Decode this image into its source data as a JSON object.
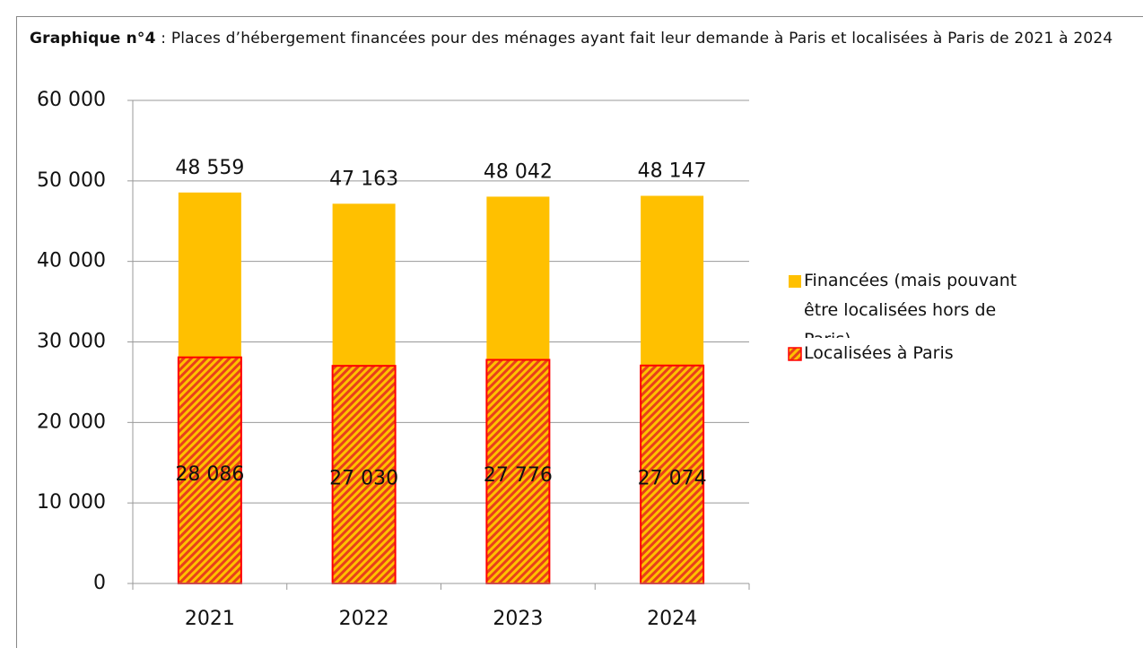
{
  "chart_data": {
    "type": "bar",
    "title_prefix": "Graphique n°4",
    "title": ": Places d’hébergement financées pour des ménages ayant fait leur demande à Paris et localisées à Paris de 2021 à 2024",
    "categories": [
      "2021",
      "2022",
      "2023",
      "2024"
    ],
    "series": [
      {
        "name": "Financées (mais pouvant être localisées hors de Paris)",
        "color": "#ffc000",
        "values": [
          48559,
          47163,
          48042,
          48147
        ],
        "value_labels": [
          "48 559",
          "47 163",
          "48 042",
          "48 147"
        ]
      },
      {
        "name": "Localisées à Paris",
        "color": "#ff0000",
        "values": [
          28086,
          27030,
          27776,
          27074
        ],
        "value_labels": [
          "28 086",
          "27 030",
          "27 776",
          "27 074"
        ]
      }
    ],
    "ylim": [
      0,
      60000
    ],
    "yticks": [
      0,
      {
        "value": 10000,
        "label": "10 000"
      },
      {
        "value": 20000,
        "label": "20 000"
      },
      {
        "value": 30000,
        "label": "30 000"
      },
      {
        "value": 40000,
        "label": "40 000"
      },
      {
        "value": 50000,
        "label": "50 000"
      },
      {
        "value": 60000,
        "label": "60 000"
      }
    ],
    "grid": true,
    "legend": "right"
  }
}
